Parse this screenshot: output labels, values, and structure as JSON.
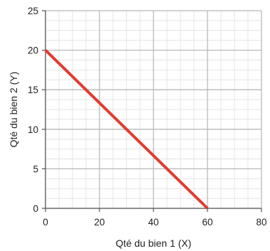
{
  "chart_data": {
    "type": "line",
    "title": "",
    "xlabel": "Qté du bien 1 (X)",
    "ylabel": "Qté du bien 2 (Y)",
    "xlim": [
      0,
      80
    ],
    "ylim": [
      0,
      25
    ],
    "x_ticks": [
      0,
      20,
      40,
      60,
      80
    ],
    "y_ticks": [
      0,
      5,
      10,
      15,
      20,
      25
    ],
    "x_tick_labels": [
      "0",
      "20",
      "40",
      "60",
      "80"
    ],
    "y_tick_labels": [
      "0",
      "5",
      "10",
      "15",
      "20",
      "25"
    ],
    "x_minor_step": 5,
    "y_minor_step": 1.25,
    "grid": true,
    "legend": "none",
    "series": [
      {
        "x": [
          0,
          60
        ],
        "y": [
          20,
          0
        ],
        "color": "#e03c31"
      }
    ]
  }
}
